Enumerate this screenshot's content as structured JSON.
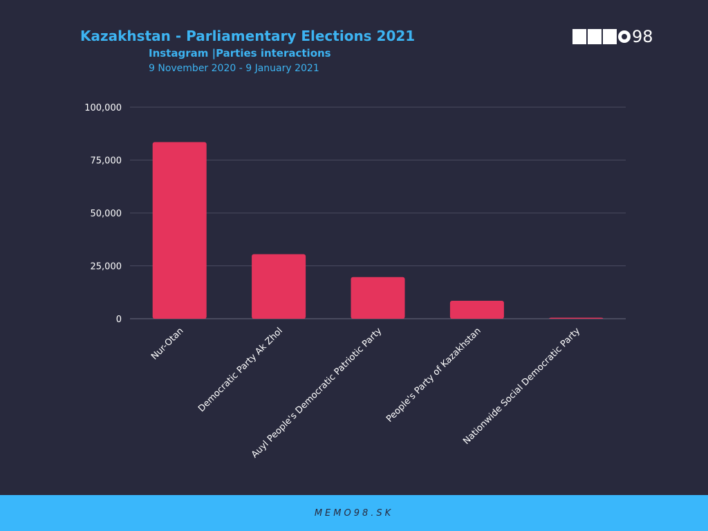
{
  "header": {
    "title": "Kazakhstan - Parliamentary Elections 2021",
    "subtitle": "Instagram |Parties interactions",
    "date_range": "9 November 2020 - 9 January 2021"
  },
  "logo": {
    "text": "98",
    "brand": "MEMO98"
  },
  "footer": {
    "text": "MEMO98.SK"
  },
  "colors": {
    "background": "#28293d",
    "bar": "#e5345c",
    "accent": "#3db4f2",
    "footer": "#3ab7fb"
  },
  "chart_data": {
    "type": "bar",
    "categories": [
      "Nur-Otan",
      "Democratic Party Ak Zhol",
      "Auyl People's Democratic Patriotic Party",
      "People's Party of Kazakhstan",
      "Nationwide Social Democratic Party"
    ],
    "values": [
      83500,
      30500,
      19700,
      8500,
      300
    ],
    "ylim": [
      0,
      100000
    ],
    "yticks": [
      0,
      25000,
      50000,
      75000,
      100000
    ],
    "ytick_labels": [
      "0",
      "25,000",
      "50,000",
      "75,000",
      "100,000"
    ],
    "grid": true,
    "xlabel": "",
    "ylabel": ""
  }
}
